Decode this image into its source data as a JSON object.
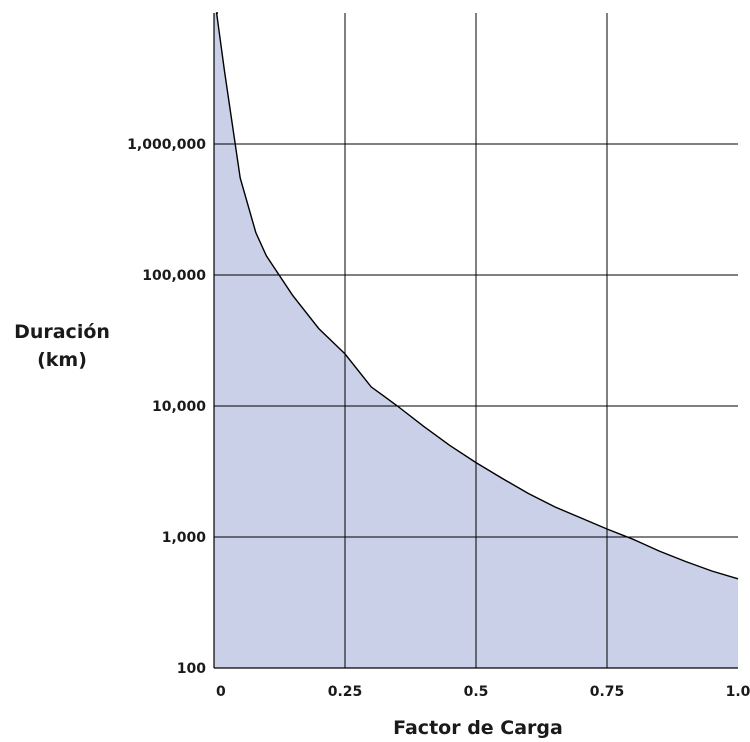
{
  "chart_data": {
    "type": "area",
    "title": "",
    "xlabel": "Factor de Carga",
    "ylabel_lines": [
      "Duración",
      "(km)"
    ],
    "x_ticks": [
      {
        "value": 0,
        "label": "0"
      },
      {
        "value": 0.25,
        "label": "0.25"
      },
      {
        "value": 0.5,
        "label": "0.5"
      },
      {
        "value": 0.75,
        "label": "0.75"
      },
      {
        "value": 1.0,
        "label": "1.0"
      }
    ],
    "y_ticks": [
      {
        "value": 100,
        "label": "100"
      },
      {
        "value": 1000,
        "label": "1,000"
      },
      {
        "value": 10000,
        "label": "10,000"
      },
      {
        "value": 100000,
        "label": "100,000"
      },
      {
        "value": 1000000,
        "label": "1,000,000"
      }
    ],
    "y_scale": "log",
    "xlim": [
      0,
      1.0
    ],
    "ylim": [
      100,
      10000000
    ],
    "grid": true,
    "fill_color": "#c9d0e8",
    "line_color": "#000000",
    "grid_color": "#000000",
    "series": [
      {
        "x": [
          0.005,
          0.02,
          0.05,
          0.08,
          0.1,
          0.15,
          0.2,
          0.25,
          0.3,
          0.35,
          0.4,
          0.45,
          0.5,
          0.55,
          0.6,
          0.65,
          0.7,
          0.75,
          0.8,
          0.85,
          0.9,
          0.95,
          1.0
        ],
        "y": [
          10000000,
          3600000,
          550000,
          210000,
          140000,
          70000,
          39000,
          25000,
          14000,
          10000,
          7000,
          5000,
          3700,
          2800,
          2150,
          1700,
          1400,
          1150,
          960,
          780,
          650,
          550,
          480
        ]
      }
    ]
  }
}
